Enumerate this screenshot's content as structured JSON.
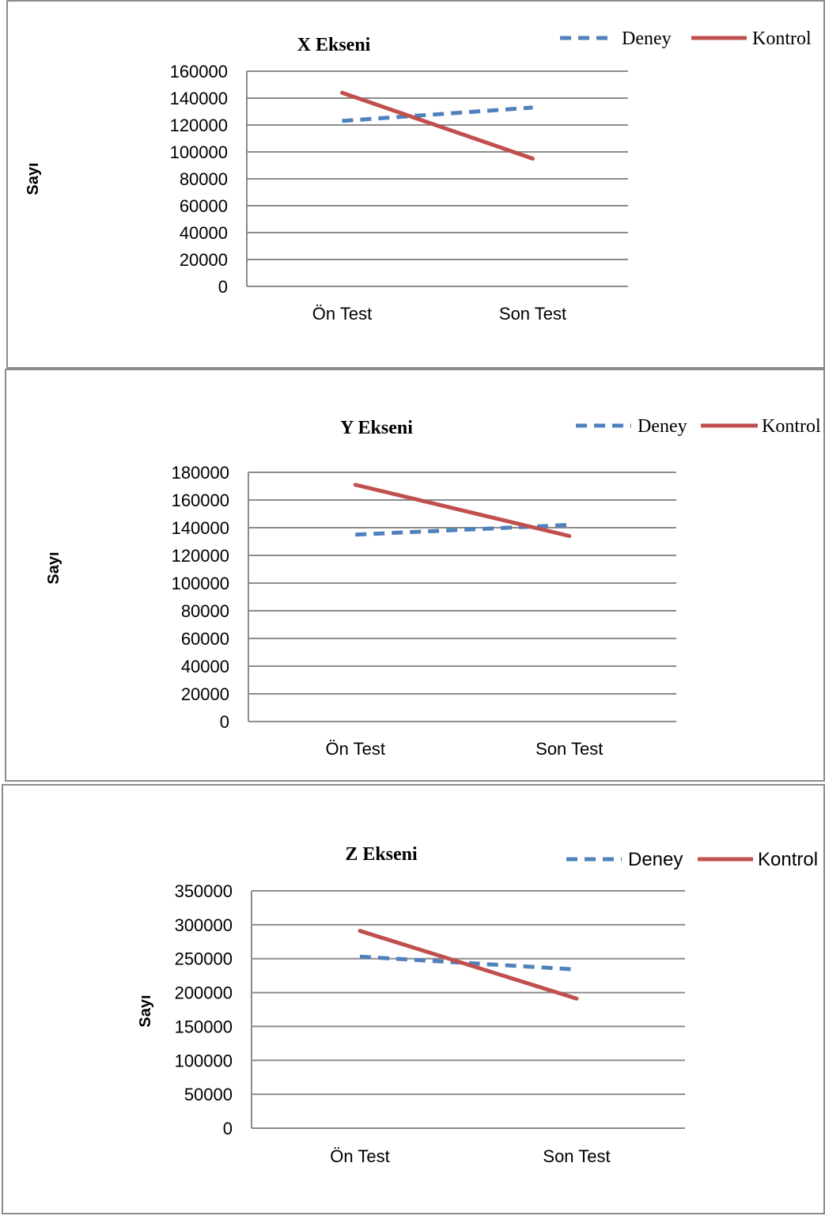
{
  "chart_data": [
    {
      "type": "line",
      "title": "X Ekseni",
      "ylabel": "Sayı",
      "xlabel": "",
      "categories": [
        "Ön Test",
        "Son Test"
      ],
      "ylim": [
        0,
        160000
      ],
      "yticks": [
        0,
        20000,
        40000,
        60000,
        80000,
        100000,
        120000,
        140000,
        160000
      ],
      "grid": true,
      "legend": "top-right",
      "series": [
        {
          "name": "Deney",
          "values": [
            123000,
            133000
          ],
          "color": "#4f81bd",
          "style": "dashed"
        },
        {
          "name": "Kontrol",
          "values": [
            144000,
            95000
          ],
          "color": "#c0504d",
          "style": "solid"
        }
      ]
    },
    {
      "type": "line",
      "title": "Y Ekseni",
      "ylabel": "Sayı",
      "xlabel": "",
      "categories": [
        "Ön Test",
        "Son Test"
      ],
      "ylim": [
        0,
        180000
      ],
      "yticks": [
        0,
        20000,
        40000,
        60000,
        80000,
        100000,
        120000,
        140000,
        160000,
        180000
      ],
      "grid": true,
      "legend": "top-right",
      "series": [
        {
          "name": "Deney",
          "values": [
            135000,
            142000
          ],
          "color": "#4f81bd",
          "style": "dashed"
        },
        {
          "name": "Kontrol",
          "values": [
            171000,
            134000
          ],
          "color": "#c0504d",
          "style": "solid"
        }
      ]
    },
    {
      "type": "line",
      "title": "Z Ekseni",
      "ylabel": "Sayı",
      "xlabel": "",
      "categories": [
        "Ön Test",
        "Son Test"
      ],
      "ylim": [
        0,
        350000
      ],
      "yticks": [
        0,
        50000,
        100000,
        150000,
        200000,
        250000,
        300000,
        350000
      ],
      "grid": true,
      "legend": "top-right",
      "series": [
        {
          "name": "Deney",
          "values": [
            253000,
            234000
          ],
          "color": "#4f81bd",
          "style": "dashed"
        },
        {
          "name": "Kontrol",
          "values": [
            291000,
            191000
          ],
          "color": "#c0504d",
          "style": "solid"
        }
      ]
    }
  ]
}
